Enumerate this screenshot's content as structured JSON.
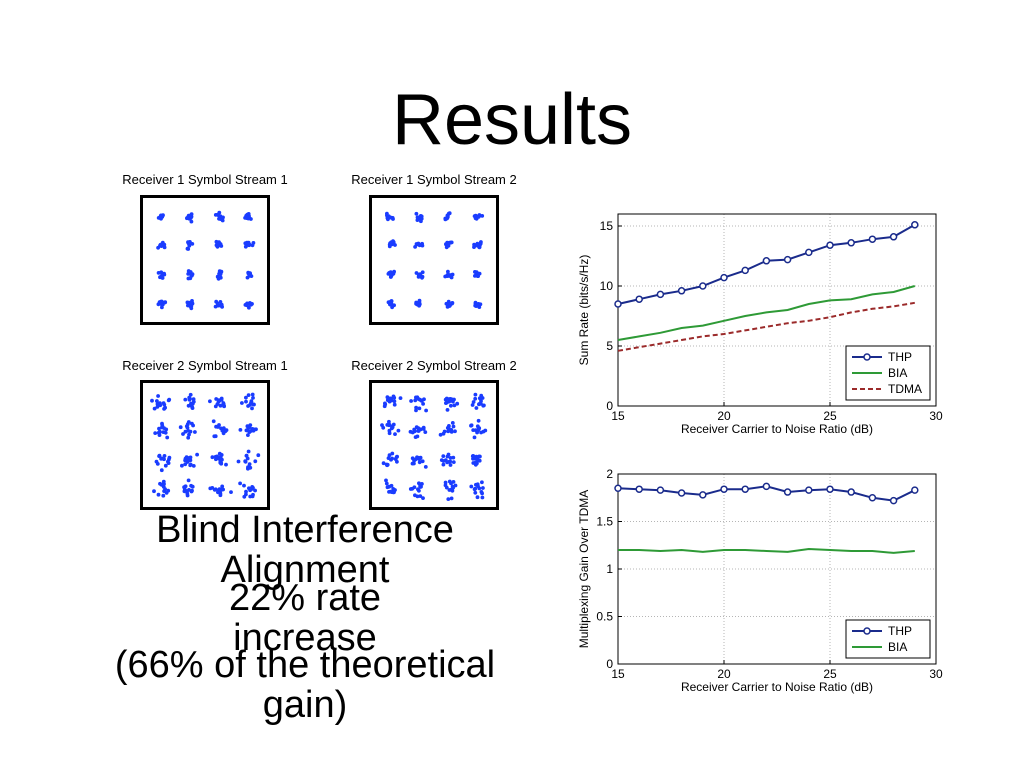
{
  "slide": {
    "title": "Results",
    "caption_1": "Blind Interference Alignment",
    "caption_2": "22% rate increase",
    "caption_3": "(66% of the theoretical gain)"
  },
  "constellations": [
    {
      "label": "Receiver 1 Symbol Stream 1",
      "noise": "low"
    },
    {
      "label": "Receiver 1 Symbol Stream 2",
      "noise": "low"
    },
    {
      "label": "Receiver 2 Symbol Stream 1",
      "noise": "high"
    },
    {
      "label": "Receiver 2 Symbol Stream 2",
      "noise": "high"
    }
  ],
  "colors": {
    "thp": "#1a2b8c",
    "bia": "#2e9a36",
    "tdma": "#9b2a2a",
    "scatter": "#1a3cff"
  },
  "chart_data": [
    {
      "type": "line",
      "xlabel": "Receiver Carrier to Noise Ratio (dB)",
      "ylabel": "Sum Rate (bits/s/Hz)",
      "xlim": [
        15,
        30
      ],
      "ylim": [
        0,
        16
      ],
      "xticks": [
        "15",
        "20",
        "25",
        "30"
      ],
      "yticks": [
        "0",
        "5",
        "10",
        "15"
      ],
      "grid": true,
      "legend_position": "bottom-right",
      "series": [
        {
          "name": "THP",
          "style": "solid-circle",
          "x": [
            15,
            16,
            17,
            18,
            19,
            20,
            21,
            22,
            23,
            24,
            25,
            26,
            27,
            28,
            29
          ],
          "y": [
            8.5,
            8.9,
            9.3,
            9.6,
            10.0,
            10.7,
            11.3,
            12.1,
            12.2,
            12.8,
            13.4,
            13.6,
            13.9,
            14.1,
            15.1
          ]
        },
        {
          "name": "BIA",
          "style": "solid",
          "x": [
            15,
            16,
            17,
            18,
            19,
            20,
            21,
            22,
            23,
            24,
            25,
            26,
            27,
            28,
            29
          ],
          "y": [
            5.5,
            5.8,
            6.1,
            6.5,
            6.7,
            7.1,
            7.5,
            7.8,
            8.0,
            8.5,
            8.8,
            8.9,
            9.3,
            9.5,
            10.0
          ]
        },
        {
          "name": "TDMA",
          "style": "dashed",
          "x": [
            15,
            16,
            17,
            18,
            19,
            20,
            21,
            22,
            23,
            24,
            25,
            26,
            27,
            28,
            29
          ],
          "y": [
            4.6,
            4.9,
            5.2,
            5.5,
            5.8,
            6.0,
            6.3,
            6.6,
            6.9,
            7.1,
            7.4,
            7.8,
            8.1,
            8.3,
            8.6
          ]
        }
      ]
    },
    {
      "type": "line",
      "xlabel": "Receiver Carrier to Noise Ratio (dB)",
      "ylabel": "Multiplexing Gain Over TDMA",
      "xlim": [
        15,
        30
      ],
      "ylim": [
        0,
        2
      ],
      "xticks": [
        "15",
        "20",
        "25",
        "30"
      ],
      "yticks": [
        "0",
        "0.5",
        "1",
        "1.5",
        "2"
      ],
      "grid": true,
      "legend_position": "bottom-right",
      "series": [
        {
          "name": "THP",
          "style": "solid-circle",
          "x": [
            15,
            16,
            17,
            18,
            19,
            20,
            21,
            22,
            23,
            24,
            25,
            26,
            27,
            28,
            29
          ],
          "y": [
            1.85,
            1.84,
            1.83,
            1.8,
            1.78,
            1.84,
            1.84,
            1.87,
            1.81,
            1.83,
            1.84,
            1.81,
            1.75,
            1.72,
            1.83
          ]
        },
        {
          "name": "BIA",
          "style": "solid",
          "x": [
            15,
            16,
            17,
            18,
            19,
            20,
            21,
            22,
            23,
            24,
            25,
            26,
            27,
            28,
            29
          ],
          "y": [
            1.2,
            1.2,
            1.19,
            1.2,
            1.18,
            1.2,
            1.2,
            1.19,
            1.18,
            1.21,
            1.2,
            1.19,
            1.19,
            1.17,
            1.19
          ]
        }
      ]
    }
  ]
}
